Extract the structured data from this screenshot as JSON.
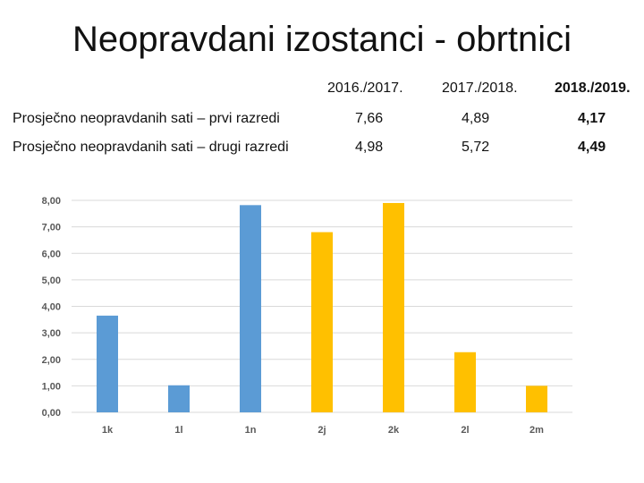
{
  "title": "Neopravdani izostanci - obrtnici",
  "table": {
    "columns": [
      "2016./2017.",
      "2017./2018.",
      "2018./2019."
    ],
    "rows": [
      {
        "label": "Prosječno neopravdanih sati – prvi razredi",
        "values": [
          "7,66",
          "4,89",
          "4,17"
        ]
      },
      {
        "label": "Prosječno neopravdanih sati – drugi razredi",
        "values": [
          "4,98",
          "5,72",
          "4,49"
        ]
      }
    ]
  },
  "colors": {
    "blue": "#5b9bd5",
    "yellow": "#ffc000",
    "grid": "#d9d9d9",
    "tick": "#595959"
  },
  "chart_data": {
    "type": "bar",
    "categories": [
      "1k",
      "1l",
      "1n",
      "2j",
      "2k",
      "2l",
      "2m"
    ],
    "values": [
      3.65,
      1.02,
      7.82,
      6.8,
      7.9,
      2.27,
      1.0
    ],
    "bar_colors": [
      "blue",
      "blue",
      "blue",
      "yellow",
      "yellow",
      "yellow",
      "yellow"
    ],
    "ylim": [
      0,
      8
    ],
    "yticks": [
      0,
      1,
      2,
      3,
      4,
      5,
      6,
      7,
      8
    ],
    "ytick_labels": [
      "0,00",
      "1,00",
      "2,00",
      "3,00",
      "4,00",
      "5,00",
      "6,00",
      "7,00",
      "8,00"
    ],
    "grid": true,
    "title": "",
    "xlabel": "",
    "ylabel": ""
  }
}
